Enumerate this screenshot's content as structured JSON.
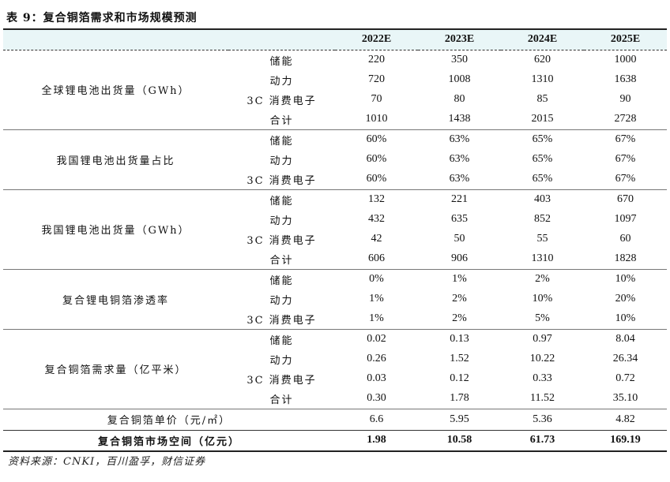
{
  "title": "表 9：复合铜箔需求和市场规模预测",
  "header": {
    "years": [
      "2022E",
      "2023E",
      "2024E",
      "2025E"
    ]
  },
  "groups": [
    {
      "label": "全球锂电池出货量（GWh）",
      "rows": [
        {
          "sub": "储能",
          "values": [
            "220",
            "350",
            "620",
            "1000"
          ]
        },
        {
          "sub": "动力",
          "values": [
            "720",
            "1008",
            "1310",
            "1638"
          ]
        },
        {
          "sub": "3C 消费电子",
          "values": [
            "70",
            "80",
            "85",
            "90"
          ]
        },
        {
          "sub": "合计",
          "values": [
            "1010",
            "1438",
            "2015",
            "2728"
          ]
        }
      ]
    },
    {
      "label": "我国锂电池出货量占比",
      "rows": [
        {
          "sub": "储能",
          "values": [
            "60%",
            "63%",
            "65%",
            "67%"
          ]
        },
        {
          "sub": "动力",
          "values": [
            "60%",
            "63%",
            "65%",
            "67%"
          ]
        },
        {
          "sub": "3C 消费电子",
          "values": [
            "60%",
            "63%",
            "65%",
            "67%"
          ]
        }
      ]
    },
    {
      "label": "我国锂电池出货量（GWh）",
      "rows": [
        {
          "sub": "储能",
          "values": [
            "132",
            "221",
            "403",
            "670"
          ]
        },
        {
          "sub": "动力",
          "values": [
            "432",
            "635",
            "852",
            "1097"
          ]
        },
        {
          "sub": "3C 消费电子",
          "values": [
            "42",
            "50",
            "55",
            "60"
          ]
        },
        {
          "sub": "合计",
          "values": [
            "606",
            "906",
            "1310",
            "1828"
          ]
        }
      ]
    },
    {
      "label": "复合锂电铜箔渗透率",
      "rows": [
        {
          "sub": "储能",
          "values": [
            "0%",
            "1%",
            "2%",
            "10%"
          ]
        },
        {
          "sub": "动力",
          "values": [
            "1%",
            "2%",
            "10%",
            "20%"
          ]
        },
        {
          "sub": "3C 消费电子",
          "values": [
            "1%",
            "2%",
            "5%",
            "10%"
          ]
        }
      ]
    },
    {
      "label": "复合铜箔需求量（亿平米）",
      "rows": [
        {
          "sub": "储能",
          "values": [
            "0.02",
            "0.13",
            "0.97",
            "8.04"
          ]
        },
        {
          "sub": "动力",
          "values": [
            "0.26",
            "1.52",
            "10.22",
            "26.34"
          ]
        },
        {
          "sub": "3C 消费电子",
          "values": [
            "0.03",
            "0.12",
            "0.33",
            "0.72"
          ]
        },
        {
          "sub": "合计",
          "values": [
            "0.30",
            "1.78",
            "11.52",
            "35.10"
          ]
        }
      ]
    }
  ],
  "price": {
    "label": "复合铜箔单价（元/㎡）",
    "values": [
      "6.6",
      "5.95",
      "5.36",
      "4.82"
    ]
  },
  "market": {
    "label": "复合铜箔市场空间（亿元）",
    "values": [
      "1.98",
      "10.58",
      "61.73",
      "169.19"
    ]
  },
  "source": "资料来源：CNKI，百川盈孚，财信证券",
  "colors": {
    "header_bg": "#e9f6f7"
  }
}
